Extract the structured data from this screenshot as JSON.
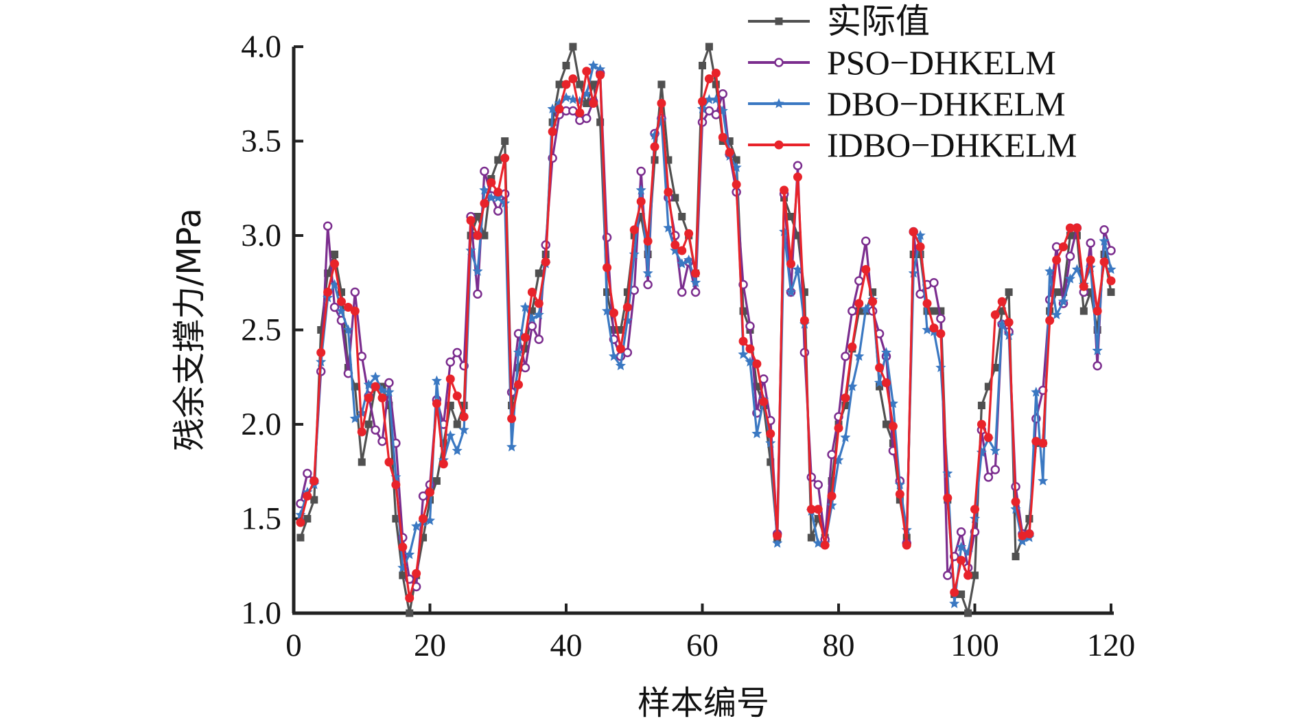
{
  "chart_data": {
    "type": "line",
    "title": "",
    "xlabel": "样本编号",
    "ylabel": "残余支撑力/MPa",
    "xlim": [
      0,
      120
    ],
    "ylim": [
      1.0,
      4.0
    ],
    "xticks": [
      "0",
      "20",
      "40",
      "60",
      "80",
      "100",
      "120"
    ],
    "yticks": [
      "1.0",
      "1.5",
      "2.0",
      "2.5",
      "3.0",
      "3.5",
      "4.0"
    ],
    "grid": false,
    "legend_position": "top-right",
    "x": [
      1,
      2,
      3,
      4,
      5,
      6,
      7,
      8,
      9,
      10,
      11,
      12,
      13,
      14,
      15,
      16,
      17,
      18,
      19,
      20,
      21,
      22,
      23,
      24,
      25,
      26,
      27,
      28,
      29,
      30,
      31,
      32,
      33,
      34,
      35,
      36,
      37,
      38,
      39,
      40,
      41,
      42,
      43,
      44,
      45,
      46,
      47,
      48,
      49,
      50,
      51,
      52,
      53,
      54,
      55,
      56,
      57,
      58,
      59,
      60,
      61,
      62,
      63,
      64,
      65,
      66,
      67,
      68,
      69,
      70,
      71,
      72,
      73,
      74,
      75,
      76,
      77,
      78,
      79,
      80,
      81,
      82,
      83,
      84,
      85,
      86,
      87,
      88,
      89,
      90,
      91,
      92,
      93,
      94,
      95,
      96,
      97,
      98,
      99,
      100,
      101,
      102,
      103,
      104,
      105,
      106,
      107,
      108,
      109,
      110,
      111,
      112,
      113,
      114,
      115,
      116,
      117,
      118,
      119,
      120
    ],
    "series": [
      {
        "name": "实际值",
        "color": "#505050",
        "marker": "square",
        "values": [
          1.4,
          1.5,
          1.6,
          2.5,
          2.8,
          2.9,
          2.7,
          2.3,
          2.2,
          1.8,
          2.0,
          2.2,
          2.2,
          2.1,
          1.5,
          1.2,
          1.0,
          1.2,
          1.4,
          1.6,
          1.7,
          1.9,
          2.1,
          2.0,
          2.1,
          3.0,
          3.1,
          3.0,
          3.3,
          3.4,
          3.5,
          2.1,
          2.3,
          2.4,
          2.6,
          2.8,
          2.9,
          3.6,
          3.8,
          3.9,
          4.0,
          3.8,
          3.7,
          3.8,
          3.6,
          2.7,
          2.5,
          2.5,
          2.7,
          3.0,
          3.1,
          2.9,
          3.4,
          3.8,
          3.4,
          3.2,
          3.1,
          3.0,
          2.8,
          3.9,
          4.0,
          3.8,
          3.5,
          3.5,
          3.4,
          2.6,
          2.5,
          2.2,
          2.1,
          1.8,
          1.4,
          3.2,
          3.1,
          3.0,
          2.7,
          1.4,
          1.5,
          1.4,
          1.7,
          2.0,
          2.1,
          2.4,
          2.6,
          2.6,
          2.7,
          2.2,
          2.0,
          1.9,
          1.6,
          1.4,
          2.9,
          2.9,
          2.6,
          2.6,
          2.6,
          1.6,
          1.1,
          1.1,
          1.0,
          1.2,
          2.1,
          2.2,
          2.3,
          2.6,
          2.7,
          1.3,
          1.4,
          1.5,
          1.9,
          1.9,
          2.6,
          2.7,
          2.7,
          3.0,
          3.0,
          2.6,
          2.7,
          2.5,
          2.9,
          2.7
        ]
      },
      {
        "name": "PSO−DHKELM",
        "color": "#7B2D8E",
        "marker": "open-circle",
        "values": [
          1.58,
          1.74,
          1.7,
          2.28,
          3.05,
          2.62,
          2.55,
          2.27,
          2.7,
          2.36,
          2.15,
          1.97,
          1.91,
          2.22,
          1.9,
          1.4,
          1.18,
          1.14,
          1.62,
          1.68,
          2.13,
          2.0,
          2.33,
          2.38,
          2.31,
          3.1,
          2.69,
          3.34,
          3.21,
          3.13,
          3.22,
          2.17,
          2.48,
          2.3,
          2.52,
          2.45,
          2.95,
          3.41,
          3.64,
          3.66,
          3.66,
          3.61,
          3.62,
          3.71,
          3.86,
          2.99,
          2.45,
          2.36,
          2.38,
          2.71,
          3.34,
          2.74,
          3.54,
          3.62,
          3.2,
          3.0,
          2.7,
          2.86,
          2.7,
          3.6,
          3.66,
          3.64,
          3.75,
          3.43,
          3.23,
          2.74,
          2.52,
          2.06,
          2.24,
          2.02,
          1.42,
          3.22,
          2.7,
          3.37,
          2.38,
          1.72,
          1.68,
          1.39,
          1.84,
          2.04,
          2.36,
          2.6,
          2.76,
          2.97,
          2.6,
          2.48,
          2.36,
          1.86,
          1.7,
          1.37,
          3.02,
          2.69,
          2.74,
          2.75,
          2.56,
          1.2,
          1.3,
          1.43,
          1.24,
          1.43,
          1.97,
          1.72,
          1.76,
          2.53,
          2.49,
          1.67,
          1.42,
          1.42,
          2.03,
          2.18,
          2.66,
          2.94,
          2.64,
          2.89,
          3.04,
          2.7,
          2.96,
          2.31,
          3.03,
          2.92
        ]
      },
      {
        "name": "DBO−DHKELM",
        "color": "#3A78C2",
        "marker": "star",
        "values": [
          1.52,
          1.64,
          1.68,
          2.33,
          2.67,
          2.74,
          2.6,
          2.5,
          2.03,
          2.06,
          2.21,
          2.25,
          2.18,
          2.17,
          1.72,
          1.24,
          1.31,
          1.46,
          1.48,
          1.49,
          2.23,
          1.81,
          1.94,
          1.86,
          1.97,
          2.92,
          2.81,
          3.24,
          3.2,
          3.2,
          3.17,
          1.88,
          2.38,
          2.62,
          2.56,
          2.58,
          2.85,
          3.67,
          3.7,
          3.73,
          3.72,
          3.71,
          3.75,
          3.9,
          3.88,
          2.6,
          2.36,
          2.31,
          2.55,
          2.9,
          3.24,
          2.8,
          3.53,
          3.61,
          3.04,
          2.92,
          2.85,
          2.87,
          2.75,
          3.67,
          3.72,
          3.72,
          3.66,
          3.42,
          3.36,
          2.37,
          2.33,
          1.95,
          2.13,
          1.9,
          1.37,
          3.02,
          2.7,
          2.82,
          2.53,
          1.54,
          1.37,
          1.37,
          1.57,
          1.81,
          1.93,
          2.2,
          2.36,
          2.61,
          2.66,
          2.22,
          2.38,
          2.11,
          1.68,
          1.44,
          2.8,
          3.0,
          2.5,
          2.49,
          2.3,
          1.74,
          1.05,
          1.35,
          1.32,
          1.5,
          1.85,
          1.92,
          1.86,
          2.53,
          2.47,
          1.55,
          1.38,
          1.4,
          2.17,
          1.7,
          2.81,
          2.58,
          2.65,
          2.77,
          2.82,
          2.74,
          2.83,
          2.39,
          2.97,
          2.82
        ]
      },
      {
        "name": "IDBO−DHKELM",
        "color": "#E8232A",
        "marker": "filled-circle",
        "values": [
          1.48,
          1.62,
          1.7,
          2.38,
          2.7,
          2.85,
          2.65,
          2.62,
          2.6,
          1.96,
          2.14,
          2.2,
          2.14,
          1.8,
          1.68,
          1.35,
          1.08,
          1.21,
          1.5,
          1.64,
          2.11,
          1.79,
          2.24,
          2.15,
          2.04,
          3.08,
          3.0,
          3.17,
          3.28,
          3.23,
          3.41,
          2.03,
          2.21,
          2.46,
          2.7,
          2.64,
          2.86,
          3.55,
          3.67,
          3.8,
          3.83,
          3.65,
          3.87,
          3.7,
          3.85,
          2.83,
          2.59,
          2.4,
          2.62,
          3.03,
          3.18,
          2.97,
          3.47,
          3.7,
          3.23,
          2.95,
          2.92,
          3.01,
          2.8,
          3.71,
          3.83,
          3.86,
          3.52,
          3.44,
          3.27,
          2.44,
          2.4,
          2.32,
          2.12,
          1.95,
          1.41,
          3.24,
          2.85,
          3.31,
          2.55,
          1.55,
          1.55,
          1.36,
          1.62,
          1.98,
          2.14,
          2.41,
          2.64,
          2.82,
          2.65,
          2.3,
          2.22,
          1.99,
          1.63,
          1.36,
          3.02,
          2.94,
          2.64,
          2.51,
          2.48,
          1.61,
          1.11,
          1.28,
          1.2,
          1.55,
          2.0,
          1.93,
          2.58,
          2.65,
          2.54,
          1.59,
          1.41,
          1.42,
          1.91,
          1.9,
          2.55,
          2.87,
          2.94,
          3.04,
          3.04,
          2.73,
          2.87,
          2.6,
          2.86,
          2.76
        ]
      }
    ]
  }
}
